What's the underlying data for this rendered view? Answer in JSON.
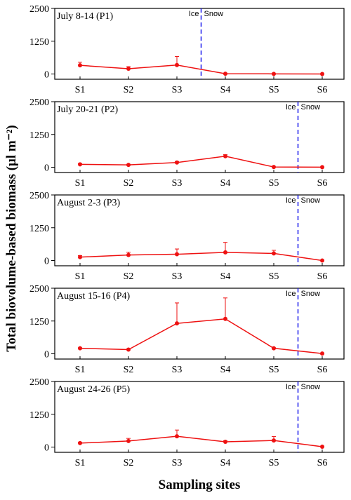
{
  "ylabel": "Total biovolume-based biomass (μl m⁻²)",
  "xlabel": "Sampling sites",
  "chart_data": [
    {
      "type": "line",
      "title": "July 8-14 (P1)",
      "categories": [
        "S1",
        "S2",
        "S3",
        "S4",
        "S5",
        "S6"
      ],
      "values": [
        330,
        200,
        340,
        10,
        5,
        0
      ],
      "errors": [
        120,
        80,
        330,
        0,
        0,
        0
      ],
      "color": "#ee1111",
      "ylim": [
        -200,
        2500
      ],
      "yticks": [
        0,
        1250,
        2500
      ],
      "boundary_after": "S3",
      "boundary_color": "#1a1aee",
      "left_label": "Ice",
      "right_label": "Snow"
    },
    {
      "type": "line",
      "title": "July 20-21 (P2)",
      "categories": [
        "S1",
        "S2",
        "S3",
        "S4",
        "S5",
        "S6"
      ],
      "values": [
        110,
        90,
        180,
        420,
        10,
        5
      ],
      "errors": [
        30,
        20,
        40,
        60,
        0,
        0
      ],
      "color": "#ee1111",
      "ylim": [
        -200,
        2500
      ],
      "yticks": [
        0,
        1250,
        2500
      ],
      "boundary_after": "S5",
      "boundary_color": "#1a1aee",
      "left_label": "Ice",
      "right_label": "Snow"
    },
    {
      "type": "line",
      "title": "August 2-3 (P3)",
      "categories": [
        "S1",
        "S2",
        "S3",
        "S4",
        "S5",
        "S6"
      ],
      "values": [
        130,
        210,
        240,
        310,
        270,
        0
      ],
      "errors": [
        60,
        110,
        200,
        380,
        120,
        0
      ],
      "color": "#ee1111",
      "ylim": [
        -200,
        2500
      ],
      "yticks": [
        0,
        1250,
        2500
      ],
      "boundary_after": "S5",
      "boundary_color": "#1a1aee",
      "left_label": "Ice",
      "right_label": "Snow"
    },
    {
      "type": "line",
      "title": "August 15-16 (P4)",
      "categories": [
        "S1",
        "S2",
        "S3",
        "S4",
        "S5",
        "S6"
      ],
      "values": [
        210,
        160,
        1160,
        1330,
        210,
        10
      ],
      "errors": [
        20,
        30,
        780,
        800,
        20,
        0
      ],
      "color": "#ee1111",
      "ylim": [
        -200,
        2500
      ],
      "yticks": [
        0,
        1250,
        2500
      ],
      "boundary_after": "S5",
      "boundary_color": "#1a1aee",
      "left_label": "Ice",
      "right_label": "Snow"
    },
    {
      "type": "line",
      "title": "August 24-26 (P5)",
      "categories": [
        "S1",
        "S2",
        "S3",
        "S4",
        "S5",
        "S6"
      ],
      "values": [
        150,
        230,
        410,
        200,
        250,
        15
      ],
      "errors": [
        30,
        100,
        240,
        40,
        150,
        0
      ],
      "color": "#ee1111",
      "ylim": [
        -200,
        2500
      ],
      "yticks": [
        0,
        1250,
        2500
      ],
      "boundary_after": "S5",
      "boundary_color": "#1a1aee",
      "left_label": "Ice",
      "right_label": "Snow"
    }
  ]
}
